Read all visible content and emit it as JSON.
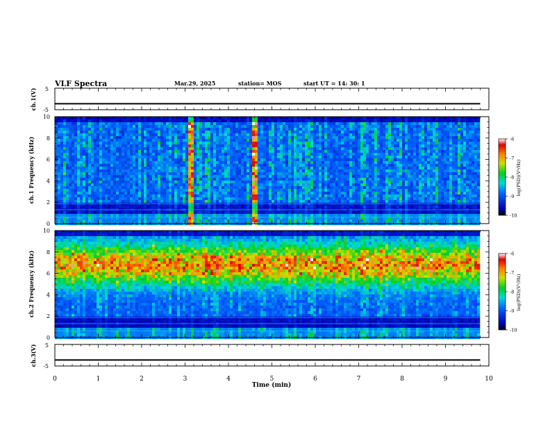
{
  "header": {
    "title": "VLF Spectra",
    "date": "Mar.29, 2025",
    "station": "station= MOS",
    "start": "start  UT =    14: 30: 1"
  },
  "chart_data": [
    {
      "type": "line",
      "name": "ch1-waveform",
      "ylabel": "ch.1(V)",
      "ylim": [
        -5,
        5
      ],
      "yticks": [
        "5",
        "-5"
      ],
      "x": [
        0,
        9.8
      ],
      "values": [
        -2.2,
        -2.2
      ]
    },
    {
      "type": "heatmap",
      "name": "ch1-spectrogram",
      "ylabel": "ch.1 Frequency (kHz)",
      "xlim": [
        0,
        10
      ],
      "ylim": [
        0,
        10
      ],
      "yticks": [
        "0",
        "2",
        "4",
        "6",
        "8",
        "10"
      ],
      "colorbar": {
        "label": "log(PSD)(V²/Hz)",
        "range": [
          -10,
          -6
        ],
        "ticks": [
          "-6",
          "-7",
          "-8",
          "-9",
          "-10"
        ]
      },
      "data_extent_min": 9.8,
      "hot_times_min": [
        3.1,
        4.6
      ]
    },
    {
      "type": "heatmap",
      "name": "ch2-spectrogram",
      "ylabel": "ch.2 Frequency (kHz)",
      "xlim": [
        0,
        10
      ],
      "ylim": [
        0,
        10
      ],
      "yticks": [
        "0",
        "2",
        "4",
        "6",
        "8",
        "10"
      ],
      "colorbar": {
        "label": "log(PSD)(V²/Hz)",
        "range": [
          -10,
          -6
        ],
        "ticks": [
          "-6",
          "-7",
          "-8",
          "-9",
          "-10"
        ]
      },
      "data_extent_min": 9.8,
      "hot_band_khz": [
        5,
        8.5
      ]
    },
    {
      "type": "line",
      "name": "ch3-waveform",
      "ylabel": "ch.3(V)",
      "ylim": [
        -5,
        5
      ],
      "yticks": [
        "5",
        "-5"
      ],
      "x": [
        0,
        9.8
      ],
      "values": [
        -2.2,
        -2.2
      ]
    }
  ],
  "xaxis": {
    "label": "Time  (min)",
    "ticks": [
      "0",
      "1",
      "2",
      "3",
      "4",
      "5",
      "6",
      "7",
      "8",
      "9",
      "10"
    ]
  }
}
